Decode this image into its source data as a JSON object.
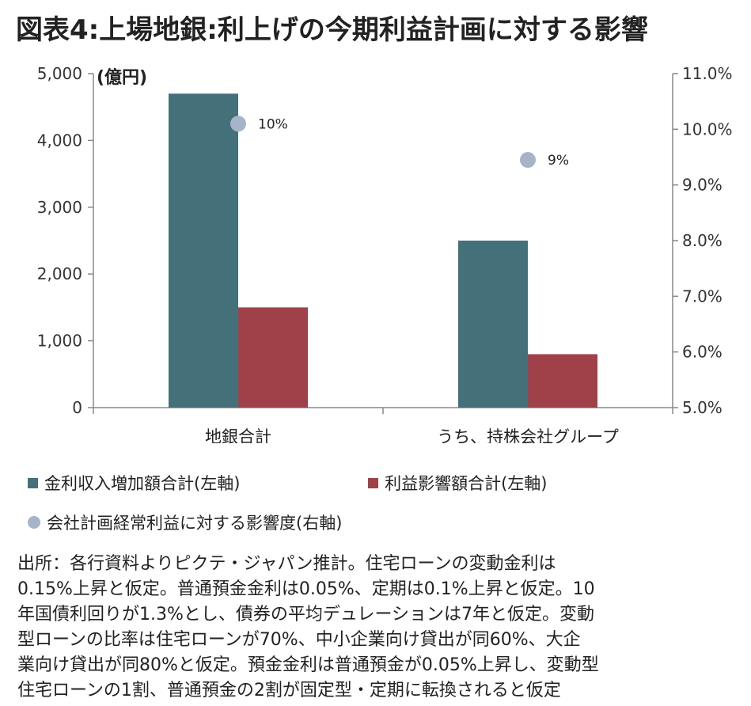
{
  "title": "図表4:上場地銀:利上げの今期利益計画に対する影響",
  "chart_data": {
    "type": "bar",
    "categories": [
      "地銀合計",
      "うち、持株会社グループ"
    ],
    "series": [
      {
        "name": "金利収入増加額合計(左軸)",
        "axis": "left",
        "type": "bar",
        "color": "#44707a",
        "values": [
          4700,
          2500
        ]
      },
      {
        "name": "利益影響額合計(左軸)",
        "axis": "left",
        "type": "bar",
        "color": "#a0414a",
        "values": [
          1500,
          800
        ]
      },
      {
        "name": "会社計画経常利益に対する影響度(右軸)",
        "axis": "right",
        "type": "scatter",
        "color": "#a5b4c8",
        "values": [
          10.1,
          9.45
        ],
        "labels": [
          "10%",
          "9%"
        ]
      }
    ],
    "y_left": {
      "unit_label": "(億円)",
      "ylim": [
        0,
        5000
      ],
      "ticks": [
        "0",
        "1,000",
        "2,000",
        "3,000",
        "4,000",
        "5,000"
      ]
    },
    "y_right": {
      "ylim": [
        5.0,
        11.0
      ],
      "ticks": [
        "5.0%",
        "6.0%",
        "7.0%",
        "8.0%",
        "9.0%",
        "10.0%",
        "11.0%"
      ]
    },
    "grid": false,
    "legend_position": "bottom"
  },
  "source_lines": [
    "出所：各行資料よりピクテ・ジャパン推計。住宅ローンの変動金利は",
    "0.15%上昇と仮定。普通預金金利は0.05%、定期は0.1%上昇と仮定。10",
    "年国債利回りが1.3%とし、債券の平均デュレーションは7年と仮定。変動",
    "型ローンの比率は住宅ローンが70%、中小企業向け貸出が同60%、大企",
    "業向け貸出が同80%と仮定。預金金利は普通預金が0.05%上昇し、変動型",
    "住宅ローンの1割、普通預金の2割が固定型・定期に転換されると仮定"
  ]
}
